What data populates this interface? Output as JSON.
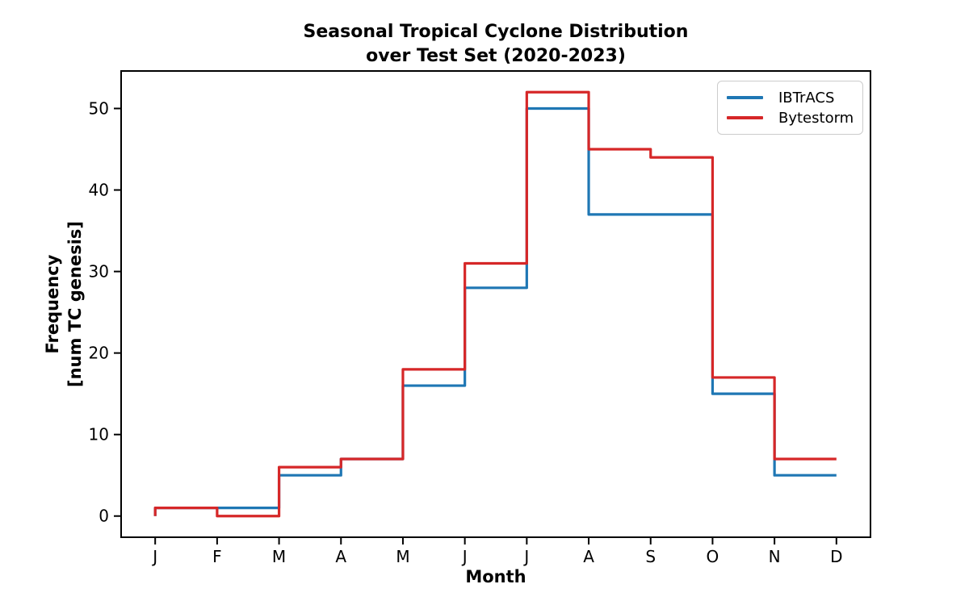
{
  "figure": {
    "background": "#ffffff",
    "title_line1": "Seasonal Tropical Cyclone Distribution",
    "title_line2": "over Test Set (2020-2023)",
    "xlabel": "Month",
    "ylabel_line1": "Frequency",
    "ylabel_line2": "[num TC genesis]"
  },
  "chart_data": {
    "type": "step",
    "title": "Seasonal Tropical Cyclone Distribution over Test Set (2020-2023)",
    "title_lines": [
      "Seasonal Tropical Cyclone Distribution",
      "over Test Set (2020-2023)"
    ],
    "xlabel": "Month",
    "ylabel": "Frequency [num TC genesis]",
    "ylabel_lines": [
      "Frequency",
      "[num TC genesis]"
    ],
    "categories": [
      "J",
      "F",
      "M",
      "A",
      "M",
      "J",
      "J",
      "A",
      "S",
      "O",
      "N",
      "D"
    ],
    "series": [
      {
        "name": "IBTrACS",
        "color": "#1f77b4",
        "values": [
          1,
          1,
          5,
          7,
          16,
          28,
          50,
          37,
          37,
          15,
          5,
          5
        ]
      },
      {
        "name": "Bytestorm",
        "color": "#d62728",
        "values": [
          1,
          0,
          6,
          7,
          18,
          31,
          52,
          45,
          44,
          17,
          7,
          7
        ]
      }
    ],
    "y_ticks": [
      0,
      10,
      20,
      30,
      40,
      50
    ],
    "ylim": [
      -2.6,
      54.6
    ],
    "xlim_months": [
      -0.55,
      11.55
    ],
    "grid": false,
    "legend_position": "upper right",
    "axis_color": "#000000",
    "step_style": "post: each value spans from its month tick to the next tick; lines rise from 0 at the J tick and terminate at the D tick at the November height"
  }
}
